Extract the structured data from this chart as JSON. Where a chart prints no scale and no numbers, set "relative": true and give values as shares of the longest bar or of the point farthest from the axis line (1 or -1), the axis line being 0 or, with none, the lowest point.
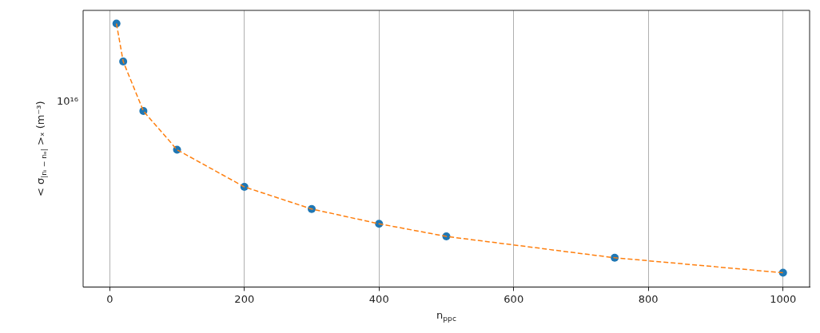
{
  "chart_data": {
    "type": "line",
    "xlabel": "n$_{ppc}$",
    "ylabel": "< σ$_{|nᵢ − nₑ|}$ >ₓ (m⁻³)",
    "x": [
      10,
      20,
      50,
      100,
      200,
      300,
      400,
      500,
      750,
      1000
    ],
    "series": [
      {
        "type": "scatter",
        "color": "#1f77b4",
        "marker": "circle",
        "values": [
          1,
          0.856,
          0.668,
          0.521,
          0.38,
          0.296,
          0.24,
          0.192,
          0.111,
          0.054
        ]
      },
      {
        "type": "line",
        "color": "#ff7f0e",
        "line_style": "dashed",
        "marker": "none",
        "values": [
          1,
          0.856,
          0.668,
          0.521,
          0.38,
          0.296,
          0.24,
          0.192,
          0.111,
          0.054
        ]
      }
    ],
    "relative": true,
    "annotations": [
      "10¹⁶"
    ],
    "xlim": [
      -39.5,
      1039.5
    ],
    "xticks": [
      0,
      200,
      400,
      600,
      800,
      1000
    ],
    "grid": true,
    "legend": false
  }
}
